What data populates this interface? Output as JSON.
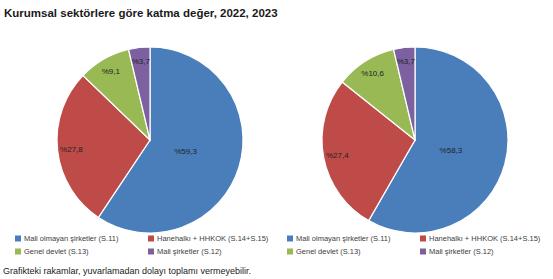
{
  "title": "Kurumsal sektörlere göre katma değer, 2022, 2023",
  "note": "Grafikteki rakamlar, yuvarlamadan dolayı toplamı vermeyebilir.",
  "chart_data": [
    {
      "type": "pie",
      "categories": [
        "Mali olmayan şirketler (S.11)",
        "Hanehalkı + HHKOK (S.14+S.15)",
        "Genel devlet (S.13)",
        "Mali şirketler (S.12)"
      ],
      "values": [
        59.3,
        27.8,
        9.1,
        3.7
      ],
      "value_labels": [
        "%59,3",
        "%27,8",
        "%9,1",
        "%3,7"
      ],
      "colors": [
        "#4a7ebb",
        "#be4b48",
        "#98b954",
        "#7d60a0"
      ],
      "data_labels": true,
      "legend": "bottom"
    },
    {
      "type": "pie",
      "categories": [
        "Mali olmayan şirketler (S.11)",
        "Hanehalkı + HHKOK (S.14+S.15)",
        "Genel devlet (S.13)",
        "Mali şirketler (S.12)"
      ],
      "values": [
        58.3,
        27.4,
        10.6,
        3.7
      ],
      "value_labels": [
        "%58,3",
        "%27,4",
        "%10,6",
        "%3,7"
      ],
      "colors": [
        "#4a7ebb",
        "#be4b48",
        "#98b954",
        "#7d60a0"
      ],
      "data_labels": true,
      "legend": "bottom"
    }
  ]
}
